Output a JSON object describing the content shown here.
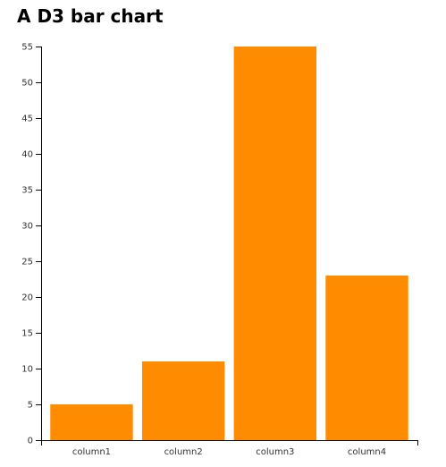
{
  "chart_data": {
    "type": "bar",
    "title": "A D3 bar chart",
    "categories": [
      "column1",
      "column2",
      "column3",
      "column4"
    ],
    "values": [
      5,
      11,
      55,
      23
    ],
    "xlabel": "",
    "ylabel": "",
    "ylim": [
      0,
      55
    ],
    "yticks": [
      0,
      5,
      10,
      15,
      20,
      25,
      30,
      35,
      40,
      45,
      50,
      55
    ],
    "grid": false,
    "legend": "none",
    "bar_color": "#FF8C00",
    "axis_color": "#000000"
  }
}
